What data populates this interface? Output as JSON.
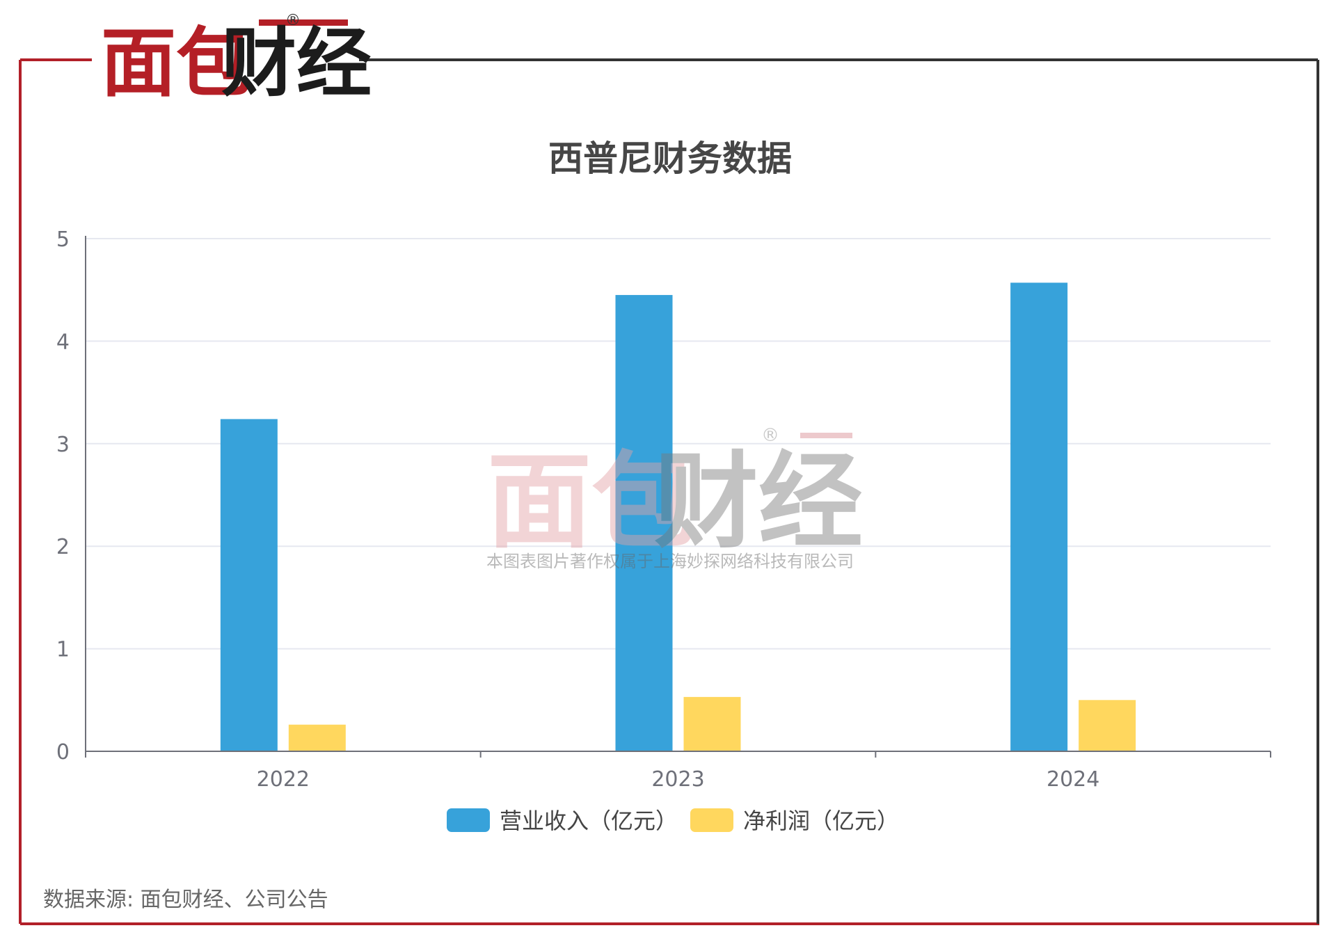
{
  "brand": {
    "logo_text": "面包财经",
    "registered_mark": "®",
    "watermark_caption": "本图表图片著作权属于上海妙探网络科技有限公司"
  },
  "chart_data": {
    "type": "bar",
    "title": "西普尼财务数据",
    "categories": [
      "2022",
      "2023",
      "2024"
    ],
    "series": [
      {
        "name": "营业收入（亿元）",
        "color": "#37a2da",
        "values": [
          3.24,
          4.45,
          4.57
        ]
      },
      {
        "name": "净利润（亿元）",
        "color": "#ffd75e",
        "values": [
          0.26,
          0.53,
          0.5
        ]
      }
    ],
    "ylim": [
      0,
      5
    ],
    "yticks": [
      "0",
      "1",
      "2",
      "3",
      "4",
      "5"
    ],
    "grid": true,
    "legend_position": "bottom-center"
  },
  "source": "数据来源: 面包财经、公司公告",
  "colors": {
    "frame_red": "#b22029",
    "frame_dark": "#333333",
    "logo_red": "#b41f26",
    "logo_dark": "#1c1c1c"
  }
}
